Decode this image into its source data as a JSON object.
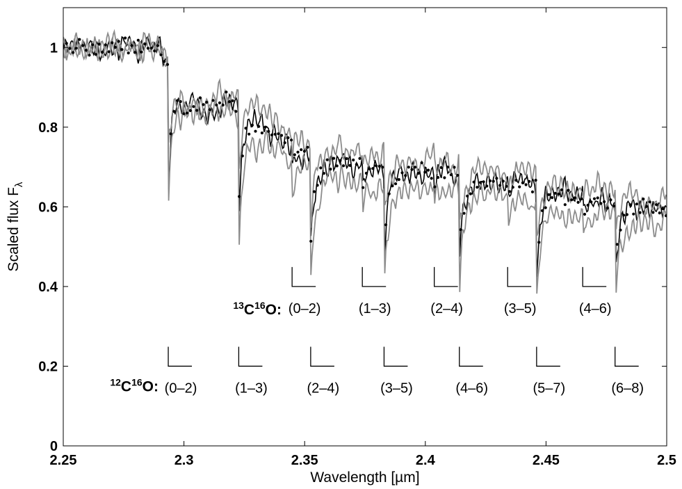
{
  "chart_data": {
    "type": "line",
    "title": "",
    "xlabel": "Wavelength [µm]",
    "ylabel": "Scaled flux F",
    "ylabel_subscript": "λ",
    "xlim": [
      2.25,
      2.5
    ],
    "ylim": [
      0,
      1.1
    ],
    "xticks": [
      2.25,
      2.3,
      2.35,
      2.4,
      2.45,
      2.5
    ],
    "xtick_labels": [
      "2.25",
      "2.3",
      "2.35",
      "2.4",
      "2.45",
      "2.5"
    ],
    "yticks": [
      0,
      0.2,
      0.4,
      0.6,
      0.8,
      1
    ],
    "ytick_labels": [
      "0",
      "0.2",
      "0.4",
      "0.6",
      "0.8",
      "1"
    ],
    "grid": false,
    "colors": {
      "model": "#000000",
      "envelope": "#8c8c8c",
      "observed": "#000000"
    },
    "continuum": {
      "x": [
        2.25,
        2.29,
        2.3,
        2.32,
        2.35,
        2.38,
        2.4,
        2.44,
        2.47,
        2.5
      ],
      "y": [
        1.0,
        1.0,
        0.87,
        0.87,
        0.74,
        0.7,
        0.7,
        0.66,
        0.62,
        0.6
      ]
    },
    "co_bandheads": {
      "12C16O": [
        2.2935,
        2.3227,
        2.3525,
        2.3829,
        2.4141,
        2.4461,
        2.4786
      ],
      "13C16O": [
        2.3448,
        2.3739,
        2.4037,
        2.4341,
        2.4652
      ]
    },
    "series": [
      {
        "style": "solid-black",
        "depth_scale": 1.0,
        "noise": 0.028,
        "seed": 3
      },
      {
        "style": "gray-upper",
        "offset": 0.03,
        "depth_scale": 0.8,
        "noise": 0.03,
        "seed": 7
      },
      {
        "style": "gray-lower",
        "offset": -0.04,
        "depth_scale": 1.2,
        "noise": 0.03,
        "seed": 11
      },
      {
        "style": "dotted",
        "depth_scale": 0.95,
        "noise": 0.018,
        "seed": 19
      }
    ],
    "annotations": {
      "c13": {
        "label": "13C16O:",
        "sup1": "13",
        "mid1": "C",
        "sup2": "16",
        "tail": "O:",
        "y_marker": 0.4,
        "bands": [
          {
            "x": 2.3448,
            "text": "(0–2)"
          },
          {
            "x": 2.3739,
            "text": "(1–3)"
          },
          {
            "x": 2.4037,
            "text": "(2–4)"
          },
          {
            "x": 2.4341,
            "text": "(3–5)"
          },
          {
            "x": 2.4652,
            "text": "(4–6)"
          }
        ]
      },
      "c12": {
        "label": "12C16O:",
        "sup1": "12",
        "mid1": "C",
        "sup2": "16",
        "tail": "O:",
        "y_marker": 0.2,
        "bands": [
          {
            "x": 2.2935,
            "text": "(0–2)"
          },
          {
            "x": 2.3227,
            "text": "(1–3)"
          },
          {
            "x": 2.3525,
            "text": "(2–4)"
          },
          {
            "x": 2.3829,
            "text": "(3–5)"
          },
          {
            "x": 2.4141,
            "text": "(4–6)"
          },
          {
            "x": 2.4461,
            "text": "(5–7)"
          },
          {
            "x": 2.4786,
            "text": "(6–8)"
          }
        ]
      }
    }
  }
}
